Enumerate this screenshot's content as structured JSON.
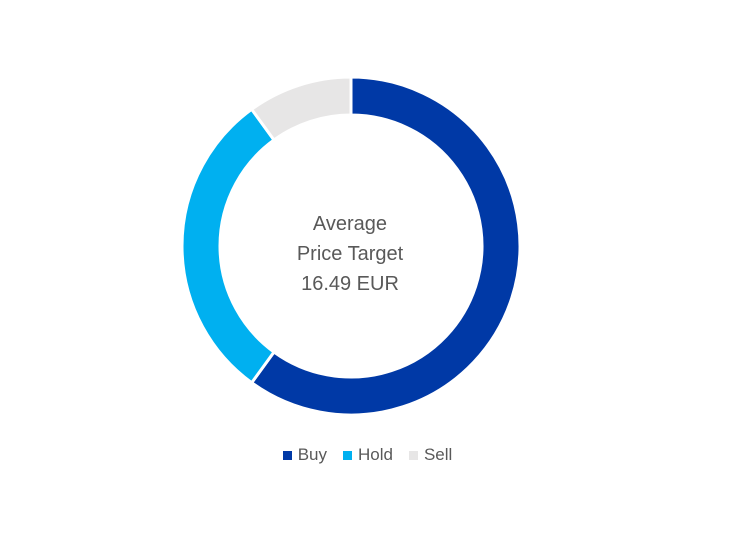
{
  "chart_data": {
    "type": "pie",
    "variant": "donut",
    "categories": [
      "Buy",
      "Hold",
      "Sell"
    ],
    "values": [
      60,
      30,
      10
    ],
    "colors": [
      "#0039A6",
      "#00B0F0",
      "#E7E6E6"
    ],
    "center_text": [
      "Average",
      "Price Target",
      "16.49 EUR"
    ],
    "legend_position": "bottom"
  }
}
